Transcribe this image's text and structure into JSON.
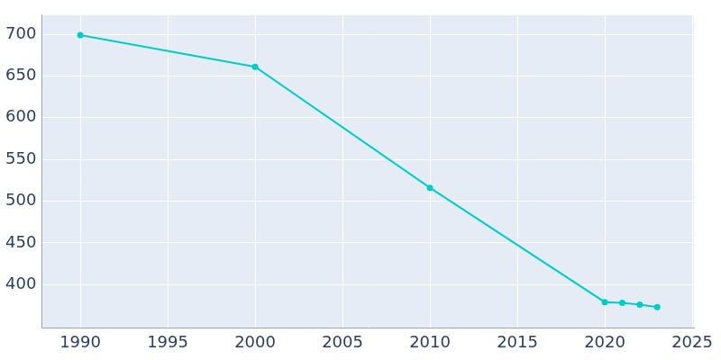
{
  "chart_data": {
    "type": "line",
    "x": [
      1990,
      2000,
      2010,
      2020,
      2021,
      2022,
      2023
    ],
    "values": [
      699,
      661,
      516,
      379,
      378,
      376,
      373
    ],
    "color": "#00cccc",
    "marker": "circle",
    "xlim": [
      1987.8,
      2025.1
    ],
    "xticks": [
      1990,
      1995,
      2000,
      2005,
      2010,
      2015,
      2020,
      2025
    ],
    "ylim": [
      348,
      723
    ],
    "yticks": [
      400,
      450,
      500,
      550,
      600,
      650,
      700
    ],
    "grid": true
  }
}
